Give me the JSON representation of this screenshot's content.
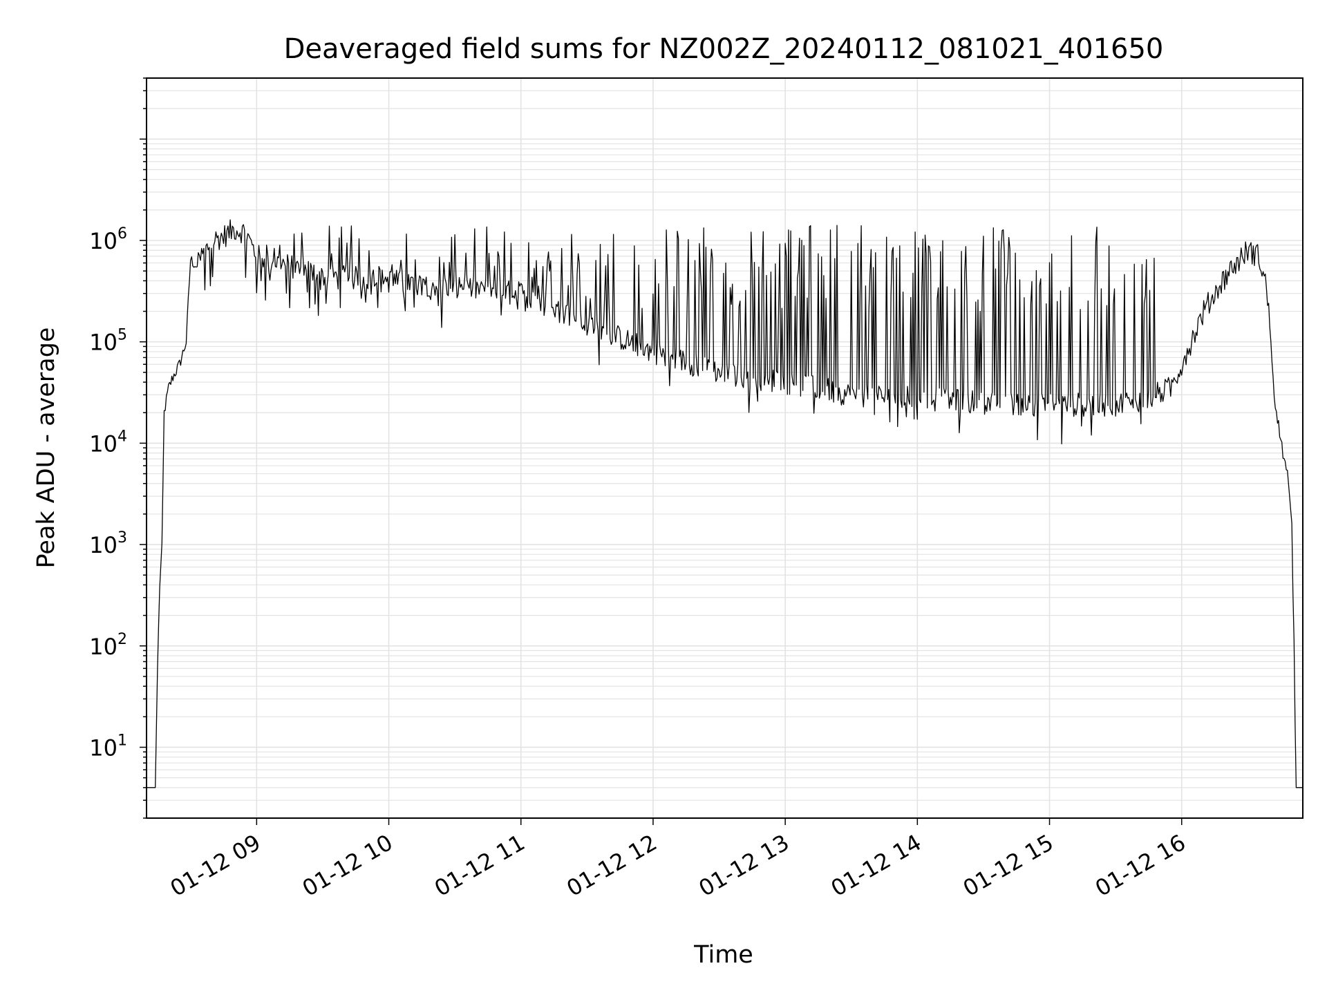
{
  "chart_data": {
    "type": "line",
    "title": "Deaveraged field sums for NZ002Z_20240112_081021_401650",
    "xlabel": "Time",
    "ylabel": "Peak ADU - average",
    "y_scale": "log",
    "ylim": [
      2,
      40000000
    ],
    "xlim": [
      "2024-01-12 08:10",
      "2024-01-12 16:55"
    ],
    "x_ticks": [
      "01-12 09",
      "01-12 10",
      "01-12 11",
      "01-12 12",
      "01-12 13",
      "01-12 14",
      "01-12 15",
      "01-12 16"
    ],
    "x_tick_times": [
      "2024-01-12 09:00",
      "2024-01-12 10:00",
      "2024-01-12 11:00",
      "2024-01-12 12:00",
      "2024-01-12 13:00",
      "2024-01-12 14:00",
      "2024-01-12 15:00",
      "2024-01-12 16:00"
    ],
    "y_ticks": [
      {
        "base": "10",
        "exp": "1",
        "value": 10
      },
      {
        "base": "10",
        "exp": "2",
        "value": 100
      },
      {
        "base": "10",
        "exp": "3",
        "value": 1000
      },
      {
        "base": "10",
        "exp": "4",
        "value": 10000
      },
      {
        "base": "10",
        "exp": "5",
        "value": 100000
      },
      {
        "base": "10",
        "exp": "6",
        "value": 1000000
      }
    ],
    "grid": true,
    "line_color": "#000000",
    "grid_color": "#e3e3e3",
    "series": [
      {
        "x": [
          "2024-01-12 08:10",
          "2024-01-12 08:13",
          "2024-01-12 08:14",
          "2024-01-12 08:15",
          "2024-01-12 08:16",
          "2024-01-12 08:17",
          "2024-01-12 08:18",
          "2024-01-12 08:20",
          "2024-01-12 08:22",
          "2024-01-12 08:25",
          "2024-01-12 08:28",
          "2024-01-12 08:30",
          "2024-01-12 08:33",
          "2024-01-12 08:35",
          "2024-01-12 08:37",
          "2024-01-12 08:40",
          "2024-01-12 08:45",
          "2024-01-12 08:50",
          "2024-01-12 08:55",
          "2024-01-12 09:00",
          "2024-01-12 09:30",
          "2024-01-12 10:00",
          "2024-01-12 10:30",
          "2024-01-12 11:00",
          "2024-01-12 11:30",
          "2024-01-12 12:00",
          "2024-01-12 12:30",
          "2024-01-12 13:00",
          "2024-01-12 13:30",
          "2024-01-12 14:00",
          "2024-01-12 14:30",
          "2024-01-12 15:00",
          "2024-01-12 15:30",
          "2024-01-12 15:45",
          "2024-01-12 15:55",
          "2024-01-12 16:00",
          "2024-01-12 16:10",
          "2024-01-12 16:20",
          "2024-01-12 16:30",
          "2024-01-12 16:35",
          "2024-01-12 16:38",
          "2024-01-12 16:40",
          "2024-01-12 16:42",
          "2024-01-12 16:44",
          "2024-01-12 16:46",
          "2024-01-12 16:48",
          "2024-01-12 16:50",
          "2024-01-12 16:51",
          "2024-01-12 16:52",
          "2024-01-12 16:53",
          "2024-01-12 16:55"
        ],
        "y": [
          4,
          4,
          4,
          60,
          400,
          900,
          20000,
          35000,
          45000,
          60000,
          100000,
          650000,
          550000,
          700000,
          800000,
          1000000,
          1100000,
          1300000,
          1200000,
          700000,
          450000,
          400000,
          350000,
          300000,
          150000,
          80000,
          50000,
          40000,
          30000,
          28000,
          25000,
          24000,
          24000,
          28000,
          35000,
          60000,
          200000,
          450000,
          800000,
          700000,
          400000,
          150000,
          30000,
          15000,
          8000,
          5000,
          1500,
          100,
          4,
          4,
          4
        ]
      }
    ]
  }
}
